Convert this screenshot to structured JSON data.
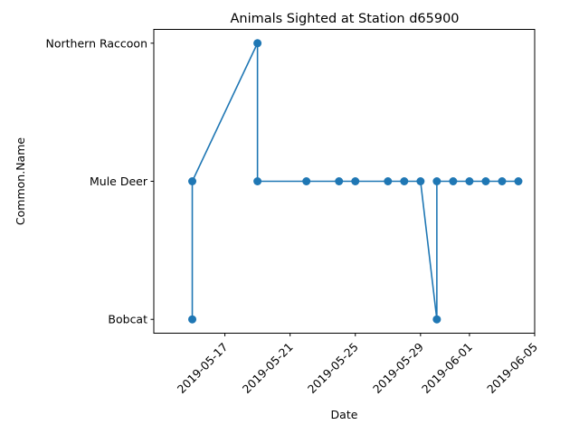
{
  "chart_data": {
    "type": "line",
    "title": "Animals Sighted at Station d65900",
    "xlabel": "Date",
    "ylabel": "Common.Name",
    "categories": [
      "Bobcat",
      "Mule Deer",
      "Northern Raccoon"
    ],
    "x_range": [
      "2019-05-13",
      "2019-06-05"
    ],
    "x_ticks": [
      "2019-05-17",
      "2019-05-21",
      "2019-05-25",
      "2019-05-29",
      "2019-06-01",
      "2019-06-05"
    ],
    "series": [
      {
        "color": "#1f77b4",
        "marker": "circle",
        "points": [
          {
            "x": "2019-05-15",
            "y": "Bobcat"
          },
          {
            "x": "2019-05-15",
            "y": "Mule Deer"
          },
          {
            "x": "2019-05-19",
            "y": "Northern Raccoon"
          },
          {
            "x": "2019-05-19",
            "y": "Mule Deer"
          },
          {
            "x": "2019-05-22",
            "y": "Mule Deer"
          },
          {
            "x": "2019-05-24",
            "y": "Mule Deer"
          },
          {
            "x": "2019-05-25",
            "y": "Mule Deer"
          },
          {
            "x": "2019-05-27",
            "y": "Mule Deer"
          },
          {
            "x": "2019-05-28",
            "y": "Mule Deer"
          },
          {
            "x": "2019-05-29",
            "y": "Mule Deer"
          },
          {
            "x": "2019-05-30",
            "y": "Bobcat"
          },
          {
            "x": "2019-05-30",
            "y": "Mule Deer"
          },
          {
            "x": "2019-05-31",
            "y": "Mule Deer"
          },
          {
            "x": "2019-06-01",
            "y": "Mule Deer"
          },
          {
            "x": "2019-06-02",
            "y": "Mule Deer"
          },
          {
            "x": "2019-06-03",
            "y": "Mule Deer"
          },
          {
            "x": "2019-06-04",
            "y": "Mule Deer"
          }
        ]
      }
    ],
    "grid": false,
    "legend": "none"
  }
}
